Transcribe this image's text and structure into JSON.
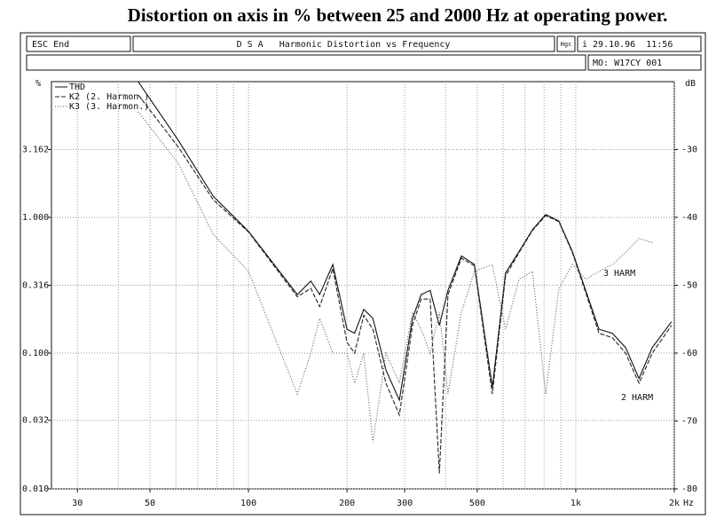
{
  "header": {
    "heading": "Distortion on axis in % between 25 and 2000 Hz at operating power.",
    "escape": "ESC End",
    "program": "D S A   Harmonic Distortion vs Frequency",
    "icon": "Hgc",
    "date": "i 29.10.96  11:56",
    "model": "MO: W17CY 001"
  },
  "chart_data": {
    "type": "line",
    "log_x": true,
    "log_y": true,
    "ylabel": "%",
    "y2label": "dB",
    "xlabel": "Hz",
    "xlim": [
      25,
      2000
    ],
    "ylim": [
      0.01,
      10
    ],
    "y2lim": [
      -80,
      -20
    ],
    "xticks": [
      30,
      50,
      100,
      200,
      300,
      500,
      {
        "value": 1000,
        "label": "1k"
      },
      {
        "value": 2000,
        "label": "2k"
      }
    ],
    "x_grid": [
      30,
      40,
      50,
      60,
      70,
      80,
      90,
      100,
      200,
      300,
      400,
      500,
      600,
      700,
      800,
      900,
      1000,
      2000
    ],
    "yticks": [
      {
        "value": 0.01,
        "label": "0.010"
      },
      {
        "value": 0.032,
        "label": "0.032"
      },
      {
        "value": 0.1,
        "label": "0.100"
      },
      {
        "value": 0.316,
        "label": "0.316"
      },
      {
        "value": 1,
        "label": "1.000"
      },
      {
        "value": 3.162,
        "label": "3.162"
      }
    ],
    "y2ticks": [
      -80,
      -70,
      -60,
      -50,
      -40,
      -30
    ],
    "grid": true,
    "legend": "top-left",
    "annotations": [
      "3 HARM",
      "2 HARM"
    ],
    "x": [
      46,
      61,
      78,
      100,
      141,
      155,
      165,
      181,
      200,
      211,
      225,
      240,
      263,
      289,
      317,
      337,
      359,
      383,
      407,
      447,
      490,
      556,
      610,
      671,
      737,
      809,
      888,
      976,
      1072,
      1177,
      1293,
      1420,
      1560,
      1713,
      1960
    ],
    "series": [
      {
        "name": "THD",
        "color": "#111111",
        "dash": "none",
        "values": [
          10,
          3.7,
          1.43,
          0.79,
          0.27,
          0.34,
          0.27,
          0.45,
          0.15,
          0.14,
          0.21,
          0.18,
          0.075,
          0.045,
          0.18,
          0.27,
          0.29,
          0.16,
          0.29,
          0.52,
          0.45,
          0.056,
          0.39,
          0.56,
          0.81,
          1.05,
          0.94,
          0.56,
          0.29,
          0.15,
          0.14,
          0.11,
          0.065,
          0.11,
          0.17
        ]
      },
      {
        "name": "K2 (2. Harmon.)",
        "color": "#222222",
        "dash": "5 2",
        "values": [
          8,
          3.3,
          1.35,
          0.78,
          0.26,
          0.3,
          0.22,
          0.42,
          0.12,
          0.1,
          0.19,
          0.15,
          0.06,
          0.035,
          0.16,
          0.25,
          0.25,
          0.013,
          0.27,
          0.5,
          0.44,
          0.05,
          0.37,
          0.55,
          0.8,
          1.03,
          0.93,
          0.55,
          0.28,
          0.14,
          0.13,
          0.1,
          0.06,
          0.1,
          0.16
        ]
      },
      {
        "name": "K3 (3. Harmon.)",
        "color": "#555555",
        "dash": "1 2",
        "values": [
          6,
          2.5,
          0.75,
          0.4,
          0.05,
          0.1,
          0.18,
          0.1,
          0.1,
          0.06,
          0.1,
          0.022,
          0.1,
          0.06,
          0.2,
          0.15,
          0.1,
          0.2,
          0.05,
          0.2,
          0.4,
          0.45,
          0.15,
          0.35,
          0.4,
          0.05,
          0.3,
          0.45,
          0.35,
          0.4,
          0.45,
          0.55,
          0.7,
          0.65,
          null
        ]
      }
    ]
  }
}
